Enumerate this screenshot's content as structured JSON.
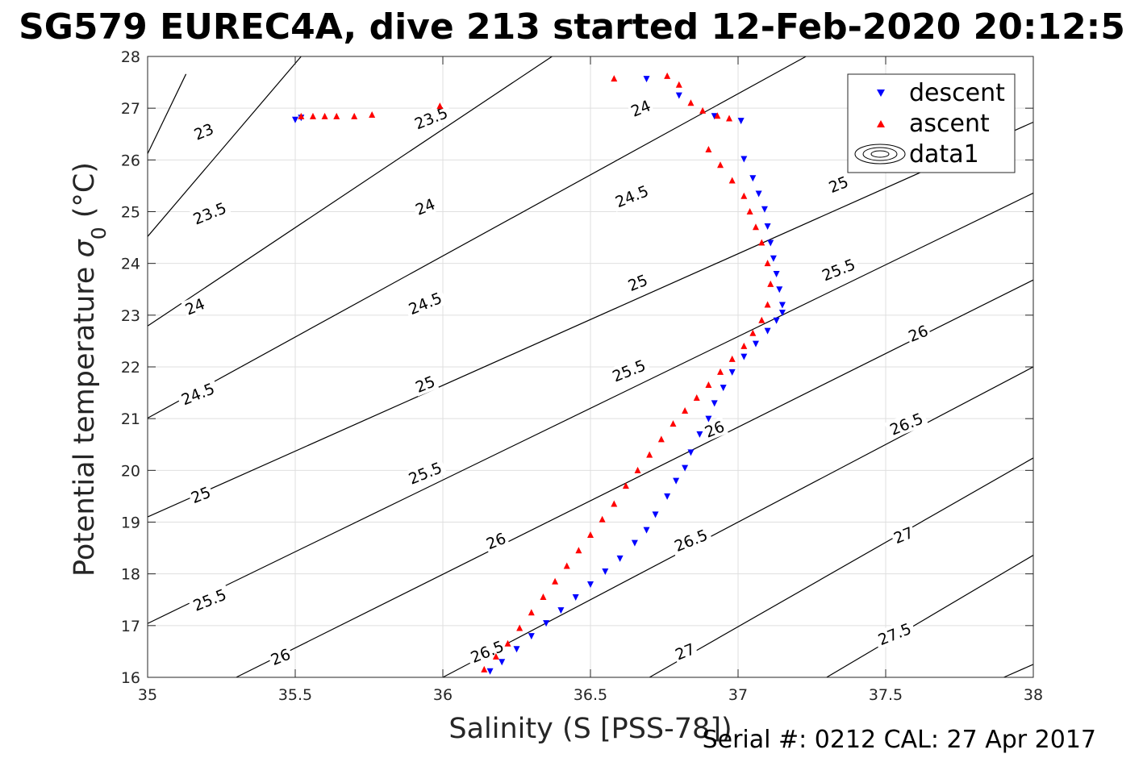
{
  "title": "SG579 EUREC4A, dive 213 started 12-Feb-2020 20:12:5",
  "footer": "Serial #: 0212  CAL: 27 Apr 2017",
  "colors": {
    "descent": "#0000ff",
    "ascent": "#ff0000",
    "contour": "#000000"
  },
  "chart_data": {
    "type": "scatter",
    "xlabel": "Salinity (S [PSS-78])",
    "ylabel_main": "Potential temperature ",
    "ylabel_sym": "σ",
    "ylabel_sub": "0",
    "ylabel_unit": " (°C)",
    "xlim": [
      35,
      38
    ],
    "ylim": [
      16,
      28
    ],
    "xticks": [
      "35",
      "35.5",
      "36",
      "36.5",
      "37",
      "37.5",
      "38"
    ],
    "yticks": [
      "16",
      "17",
      "18",
      "19",
      "20",
      "21",
      "22",
      "23",
      "24",
      "25",
      "26",
      "27",
      "28"
    ],
    "grid": true,
    "legend": {
      "position": "top-right",
      "entries": [
        {
          "name": "descent",
          "marker": "triangle-down",
          "color": "#0000ff"
        },
        {
          "name": "ascent",
          "marker": "triangle-up",
          "color": "#ff0000"
        },
        {
          "name": "data1",
          "marker": "contour"
        }
      ]
    },
    "contour_lines": [
      {
        "level": "23",
        "from": [
          35.0,
          26.12
        ],
        "to": [
          35.13,
          27.66
        ]
      },
      {
        "level": "23.5",
        "from": [
          35.0,
          24.52
        ],
        "to": [
          35.52,
          28.0
        ]
      },
      {
        "level": "24",
        "from": [
          35.0,
          22.79
        ],
        "to": [
          36.37,
          28.0
        ]
      },
      {
        "level": "24.5",
        "from": [
          35.0,
          21.01
        ],
        "to": [
          37.23,
          28.0
        ]
      },
      {
        "level": "25",
        "from": [
          35.0,
          19.1
        ],
        "to": [
          38.0,
          26.73
        ]
      },
      {
        "level": "25.5",
        "from": [
          35.0,
          17.04
        ],
        "to": [
          38.0,
          25.36
        ]
      },
      {
        "level": "26",
        "from": [
          35.3,
          16.0
        ],
        "to": [
          38.0,
          23.68
        ]
      },
      {
        "level": "26.5",
        "from": [
          36.0,
          16.0
        ],
        "to": [
          38.0,
          22.0
        ]
      },
      {
        "level": "27",
        "from": [
          36.7,
          16.0
        ],
        "to": [
          38.0,
          20.24
        ]
      },
      {
        "level": "27.5",
        "from": [
          37.3,
          16.0
        ],
        "to": [
          38.0,
          18.36
        ]
      },
      {
        "level": "28",
        "from": [
          37.9,
          16.0
        ],
        "to": [
          38.0,
          16.25
        ]
      }
    ],
    "contour_labels": [
      {
        "text": "23",
        "x": 35.19,
        "y": 26.55,
        "angle": -22
      },
      {
        "text": "23.5",
        "x": 35.21,
        "y": 24.97,
        "angle": -22
      },
      {
        "text": "24",
        "x": 35.16,
        "y": 23.17,
        "angle": -22
      },
      {
        "text": "24.5",
        "x": 35.17,
        "y": 21.48,
        "angle": -22
      },
      {
        "text": "25",
        "x": 35.18,
        "y": 19.53,
        "angle": -22
      },
      {
        "text": "25.5",
        "x": 35.21,
        "y": 17.5,
        "angle": -22
      },
      {
        "text": "26",
        "x": 35.45,
        "y": 16.4,
        "angle": -22
      },
      {
        "text": "23.5",
        "x": 35.96,
        "y": 26.81,
        "angle": -22
      },
      {
        "text": "24",
        "x": 35.94,
        "y": 25.1,
        "angle": -22
      },
      {
        "text": "24.5",
        "x": 35.94,
        "y": 23.23,
        "angle": -22
      },
      {
        "text": "25",
        "x": 35.94,
        "y": 21.67,
        "angle": -22
      },
      {
        "text": "25.5",
        "x": 35.94,
        "y": 19.95,
        "angle": -22
      },
      {
        "text": "26",
        "x": 36.18,
        "y": 18.64,
        "angle": -22
      },
      {
        "text": "26.5",
        "x": 36.15,
        "y": 16.5,
        "angle": -22
      },
      {
        "text": "24",
        "x": 36.67,
        "y": 27.0,
        "angle": -22
      },
      {
        "text": "24.5",
        "x": 36.64,
        "y": 25.3,
        "angle": -22
      },
      {
        "text": "25",
        "x": 36.66,
        "y": 23.63,
        "angle": -22
      },
      {
        "text": "25.5",
        "x": 36.63,
        "y": 21.93,
        "angle": -22
      },
      {
        "text": "26",
        "x": 36.92,
        "y": 20.8,
        "angle": -22
      },
      {
        "text": "26.5",
        "x": 36.84,
        "y": 18.65,
        "angle": -22
      },
      {
        "text": "27",
        "x": 36.82,
        "y": 16.5,
        "angle": -22
      },
      {
        "text": "25",
        "x": 37.34,
        "y": 25.53,
        "angle": -22
      },
      {
        "text": "25.5",
        "x": 37.34,
        "y": 23.88,
        "angle": -22
      },
      {
        "text": "26",
        "x": 37.61,
        "y": 22.65,
        "angle": -22
      },
      {
        "text": "26.5",
        "x": 37.57,
        "y": 20.9,
        "angle": -22
      },
      {
        "text": "27",
        "x": 37.56,
        "y": 18.75,
        "angle": -22
      },
      {
        "text": "27.5",
        "x": 37.53,
        "y": 16.84,
        "angle": -22
      }
    ],
    "series": [
      {
        "name": "descent",
        "marker": "triangle-down",
        "color": "#0000ff",
        "x": [
          35.5,
          35.52,
          36.69,
          36.8,
          36.92,
          37.01,
          37.02,
          37.05,
          37.07,
          37.09,
          37.1,
          37.11,
          37.12,
          37.13,
          37.14,
          37.15,
          37.15,
          37.13,
          37.1,
          37.06,
          37.02,
          36.98,
          36.95,
          36.92,
          36.9,
          36.87,
          36.84,
          36.82,
          36.79,
          36.76,
          36.72,
          36.69,
          36.65,
          36.6,
          36.55,
          36.5,
          36.45,
          36.4,
          36.35,
          36.3,
          36.25,
          36.2,
          36.16
        ],
        "y": [
          26.78,
          26.82,
          27.57,
          27.25,
          26.85,
          26.76,
          26.02,
          25.65,
          25.35,
          25.05,
          24.72,
          24.4,
          24.1,
          23.8,
          23.5,
          23.2,
          23.05,
          22.9,
          22.7,
          22.45,
          22.2,
          21.9,
          21.6,
          21.3,
          21.0,
          20.7,
          20.35,
          20.05,
          19.8,
          19.5,
          19.15,
          18.85,
          18.6,
          18.3,
          18.05,
          17.8,
          17.55,
          17.3,
          17.05,
          16.8,
          16.55,
          16.3,
          16.12
        ]
      },
      {
        "name": "ascent",
        "marker": "triangle-up",
        "color": "#ff0000",
        "x": [
          35.52,
          35.56,
          35.6,
          35.64,
          35.7,
          35.76,
          35.99,
          36.58,
          36.76,
          36.8,
          36.84,
          36.88,
          36.93,
          36.97,
          36.9,
          36.94,
          36.98,
          37.02,
          37.04,
          37.06,
          37.08,
          37.1,
          37.11,
          37.1,
          37.08,
          37.05,
          37.02,
          36.98,
          36.94,
          36.9,
          36.86,
          36.82,
          36.78,
          36.74,
          36.7,
          36.66,
          36.62,
          36.58,
          36.54,
          36.5,
          36.46,
          36.42,
          36.38,
          36.34,
          36.3,
          36.26,
          36.22,
          36.18,
          36.14
        ],
        "y": [
          26.84,
          26.84,
          26.84,
          26.84,
          26.84,
          26.87,
          27.04,
          27.57,
          27.62,
          27.45,
          27.1,
          26.95,
          26.85,
          26.8,
          26.2,
          25.9,
          25.6,
          25.3,
          25.0,
          24.7,
          24.4,
          24.0,
          23.6,
          23.2,
          22.9,
          22.65,
          22.4,
          22.15,
          21.9,
          21.65,
          21.4,
          21.15,
          20.9,
          20.6,
          20.3,
          20.0,
          19.7,
          19.35,
          19.05,
          18.75,
          18.45,
          18.15,
          17.85,
          17.55,
          17.25,
          16.95,
          16.65,
          16.4,
          16.15
        ]
      }
    ]
  }
}
